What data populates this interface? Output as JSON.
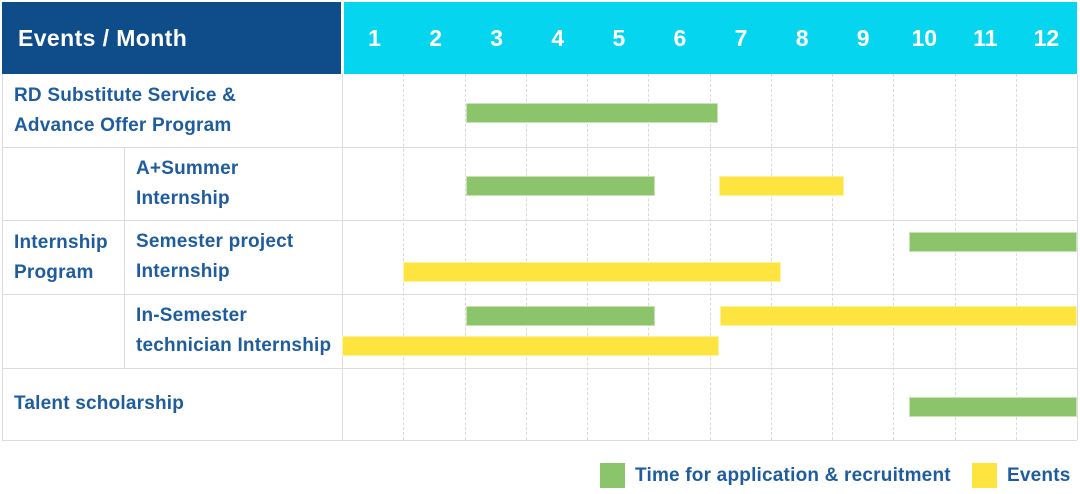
{
  "header": {
    "corner_label": "Events / Month",
    "months": [
      "1",
      "2",
      "3",
      "4",
      "5",
      "6",
      "7",
      "8",
      "9",
      "10",
      "11",
      "12"
    ]
  },
  "group": {
    "label_lines": [
      "Internship",
      "Program"
    ]
  },
  "rows": [
    {
      "label_lines": [
        "RD Substitute Service &",
        "Advance Offer Program"
      ],
      "lines": [
        [
          {
            "kind": "application",
            "start_col": 2.03,
            "end_col": 6.14
          }
        ]
      ]
    },
    {
      "label_lines": [
        "A+Summer",
        "Internship"
      ],
      "lines": [
        [
          {
            "kind": "application",
            "start_col": 2.03,
            "end_col": 5.11
          },
          {
            "kind": "event",
            "start_col": 6.16,
            "end_col": 8.2
          }
        ]
      ]
    },
    {
      "label_lines": [
        "Semester project",
        "Internship"
      ],
      "lines": [
        [
          {
            "kind": "application",
            "start_col": 9.25,
            "end_col": 12
          }
        ],
        [
          {
            "kind": "event",
            "start_col": 1.0,
            "end_col": 7.17
          }
        ]
      ]
    },
    {
      "label_lines": [
        "In-Semester",
        "technician Internship"
      ],
      "lines": [
        [
          {
            "kind": "application",
            "start_col": 2.03,
            "end_col": 5.11
          },
          {
            "kind": "event",
            "start_col": 6.17,
            "end_col": 12
          }
        ],
        [
          {
            "kind": "event",
            "start_col": 0,
            "end_col": 6.16
          }
        ]
      ]
    },
    {
      "label_lines": [
        "Talent scholarship"
      ],
      "lines": [
        [
          {
            "kind": "application",
            "start_col": 9.25,
            "end_col": 12
          }
        ]
      ]
    }
  ],
  "legend": [
    {
      "kind": "application",
      "label": "Time for application & recruitment"
    },
    {
      "kind": "event",
      "label": "Events"
    }
  ],
  "colors": {
    "navy": "#0e4c8a",
    "cyan": "#06d5ef",
    "green": "#8bc46a",
    "green-edge": "#c8e2b2",
    "yellow": "#fde43f",
    "yellow-edge": "#fdf2a2",
    "blue": "#1e5c9e",
    "grid": "#dcdcdc",
    "grid-dash": "#d9d9d9"
  },
  "chart_data": {
    "type": "bar",
    "subtype": "gantt",
    "title": "Events / Month",
    "x_categories": [
      "1",
      "2",
      "3",
      "4",
      "5",
      "6",
      "7",
      "8",
      "9",
      "10",
      "11",
      "12"
    ],
    "xlabel": "Month",
    "legend_entries": [
      "Time for application & recruitment",
      "Events"
    ],
    "legend_position": "bottom-right",
    "grid": "dashed-vertical",
    "rows": [
      {
        "name": "RD Substitute Service & Advance Offer Program",
        "group": null,
        "bars": [
          {
            "series": "Time for application & recruitment",
            "start_month": 3,
            "end_month": 6
          }
        ]
      },
      {
        "name": "A+Summer Internship",
        "group": "Internship Program",
        "bars": [
          {
            "series": "Time for application & recruitment",
            "start_month": 3,
            "end_month": 5
          },
          {
            "series": "Events",
            "start_month": 7,
            "end_month": 8
          }
        ]
      },
      {
        "name": "Semester project Internship",
        "group": "Internship Program",
        "bars": [
          {
            "series": "Time for application & recruitment",
            "start_month": 10,
            "end_month": 12
          },
          {
            "series": "Events",
            "start_month": 2,
            "end_month": 7
          }
        ]
      },
      {
        "name": "In-Semester technician Internship",
        "group": "Internship Program",
        "bars": [
          {
            "series": "Time for application & recruitment",
            "start_month": 3,
            "end_month": 5
          },
          {
            "series": "Events",
            "start_month": 7,
            "end_month": 12
          },
          {
            "series": "Events",
            "start_month": 1,
            "end_month": 6
          }
        ]
      },
      {
        "name": "Talent scholarship",
        "group": null,
        "bars": [
          {
            "series": "Time for application & recruitment",
            "start_month": 10,
            "end_month": 12
          }
        ]
      }
    ]
  }
}
